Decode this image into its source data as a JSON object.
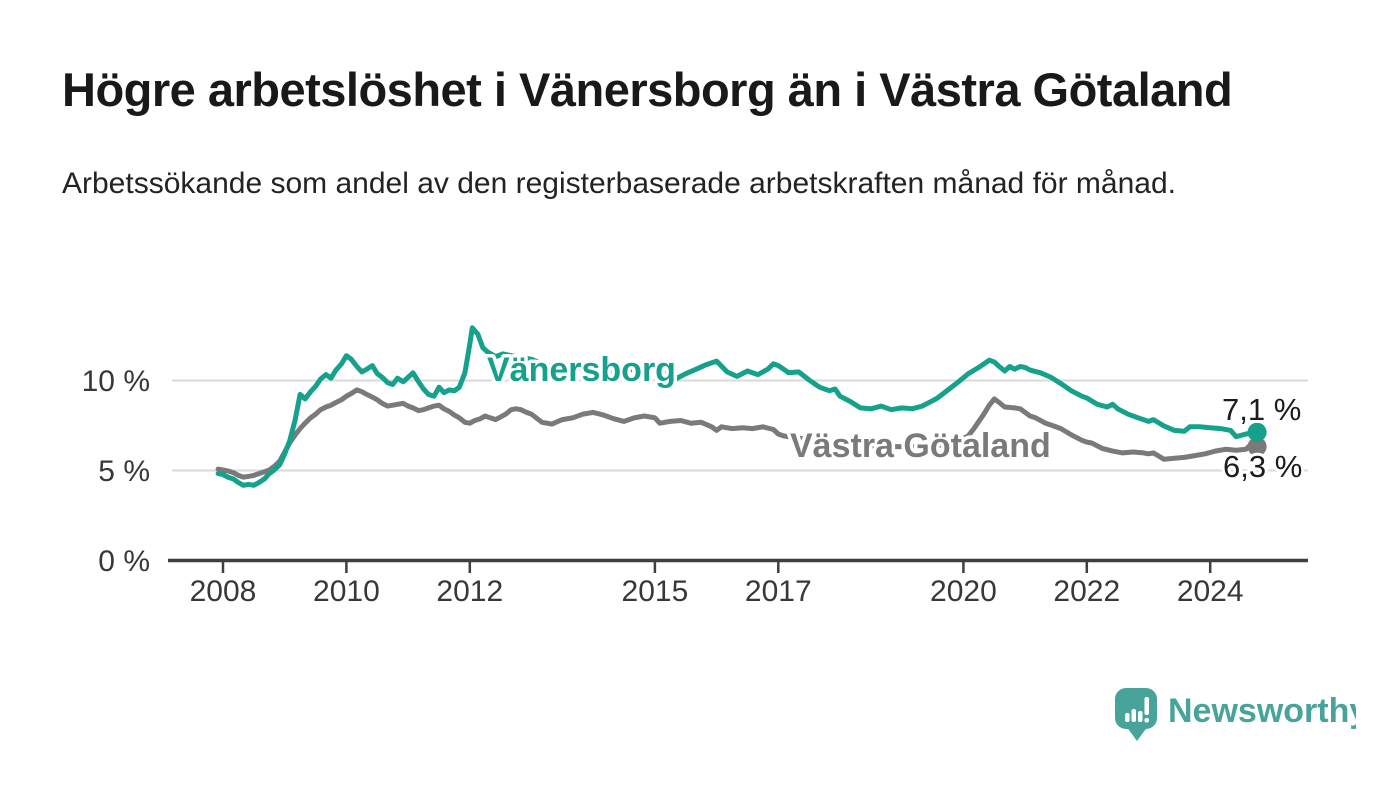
{
  "header": {
    "title": "Högre arbetslöshet i Vänersborg än i Västra Götaland",
    "subtitle": "Arbetssökande som andel av den registerbaserade arbetskraften månad för månad."
  },
  "chart_data": {
    "type": "line",
    "unit": "%",
    "grid": "horizontal",
    "legend_position": "inline-labels",
    "xlim": [
      2007.9,
      2025.6
    ],
    "ylim": [
      0,
      13.5
    ],
    "x_ticks": [
      {
        "year": 2008,
        "label": "2008"
      },
      {
        "year": 2010,
        "label": "2010"
      },
      {
        "year": 2012,
        "label": "2012"
      },
      {
        "year": 2015,
        "label": "2015"
      },
      {
        "year": 2017,
        "label": "2017"
      },
      {
        "year": 2020,
        "label": "2020"
      },
      {
        "year": 2022,
        "label": "2022"
      },
      {
        "year": 2024,
        "label": "2024"
      }
    ],
    "y_ticks": [
      {
        "value": 0,
        "label": "0 %"
      },
      {
        "value": 5,
        "label": "5 %"
      },
      {
        "value": 10,
        "label": "10 %"
      }
    ],
    "series": [
      {
        "name": "Vänersborg",
        "color": "#16a18d",
        "end_label": "7,1 %",
        "end_value": 7.1,
        "points": [
          [
            2007.92,
            4.8
          ],
          [
            2008.0,
            4.75
          ],
          [
            2008.08,
            4.6
          ],
          [
            2008.17,
            4.5
          ],
          [
            2008.25,
            4.3
          ],
          [
            2008.33,
            4.15
          ],
          [
            2008.42,
            4.2
          ],
          [
            2008.5,
            4.15
          ],
          [
            2008.58,
            4.3
          ],
          [
            2008.67,
            4.5
          ],
          [
            2008.75,
            4.8
          ],
          [
            2008.83,
            5.0
          ],
          [
            2008.92,
            5.3
          ],
          [
            2009.0,
            5.9
          ],
          [
            2009.08,
            6.6
          ],
          [
            2009.17,
            7.8
          ],
          [
            2009.25,
            9.2
          ],
          [
            2009.33,
            8.95
          ],
          [
            2009.42,
            9.35
          ],
          [
            2009.5,
            9.65
          ],
          [
            2009.58,
            10.05
          ],
          [
            2009.67,
            10.3
          ],
          [
            2009.75,
            10.1
          ],
          [
            2009.83,
            10.55
          ],
          [
            2009.92,
            10.9
          ],
          [
            2010.0,
            11.35
          ],
          [
            2010.08,
            11.15
          ],
          [
            2010.17,
            10.75
          ],
          [
            2010.25,
            10.45
          ],
          [
            2010.33,
            10.6
          ],
          [
            2010.42,
            10.8
          ],
          [
            2010.5,
            10.35
          ],
          [
            2010.58,
            10.15
          ],
          [
            2010.67,
            9.85
          ],
          [
            2010.75,
            9.75
          ],
          [
            2010.83,
            10.1
          ],
          [
            2010.92,
            9.9
          ],
          [
            2011.0,
            10.15
          ],
          [
            2011.08,
            10.4
          ],
          [
            2011.17,
            9.9
          ],
          [
            2011.25,
            9.5
          ],
          [
            2011.33,
            9.2
          ],
          [
            2011.42,
            9.1
          ],
          [
            2011.5,
            9.6
          ],
          [
            2011.58,
            9.3
          ],
          [
            2011.67,
            9.45
          ],
          [
            2011.75,
            9.4
          ],
          [
            2011.83,
            9.6
          ],
          [
            2011.92,
            10.4
          ],
          [
            2012.0,
            12.0
          ],
          [
            2012.04,
            12.9
          ],
          [
            2012.13,
            12.55
          ],
          [
            2012.21,
            11.8
          ],
          [
            2012.29,
            11.55
          ],
          [
            2012.42,
            11.3
          ],
          [
            2012.54,
            11.45
          ],
          [
            2012.67,
            11.35
          ],
          [
            2012.83,
            11.25
          ],
          [
            2013.0,
            11.15
          ],
          [
            2013.17,
            10.9
          ],
          [
            2013.33,
            10.75
          ],
          [
            2013.5,
            10.6
          ],
          [
            2013.67,
            10.55
          ],
          [
            2013.83,
            10.7
          ],
          [
            2014.0,
            10.65
          ],
          [
            2014.17,
            10.5
          ],
          [
            2014.33,
            10.45
          ],
          [
            2014.5,
            10.55
          ],
          [
            2014.67,
            10.6
          ],
          [
            2014.83,
            10.7
          ],
          [
            2015.0,
            10.8
          ],
          [
            2015.17,
            10.35
          ],
          [
            2015.33,
            10.05
          ],
          [
            2015.5,
            10.35
          ],
          [
            2015.67,
            10.6
          ],
          [
            2015.83,
            10.85
          ],
          [
            2016.0,
            11.05
          ],
          [
            2016.17,
            10.45
          ],
          [
            2016.33,
            10.2
          ],
          [
            2016.5,
            10.5
          ],
          [
            2016.67,
            10.3
          ],
          [
            2016.83,
            10.6
          ],
          [
            2016.92,
            10.9
          ],
          [
            2017.0,
            10.8
          ],
          [
            2017.17,
            10.4
          ],
          [
            2017.33,
            10.45
          ],
          [
            2017.5,
            10.0
          ],
          [
            2017.67,
            9.6
          ],
          [
            2017.83,
            9.4
          ],
          [
            2017.92,
            9.5
          ],
          [
            2018.0,
            9.1
          ],
          [
            2018.17,
            8.8
          ],
          [
            2018.33,
            8.45
          ],
          [
            2018.5,
            8.4
          ],
          [
            2018.67,
            8.55
          ],
          [
            2018.83,
            8.35
          ],
          [
            2019.0,
            8.45
          ],
          [
            2019.17,
            8.4
          ],
          [
            2019.33,
            8.55
          ],
          [
            2019.5,
            8.85
          ],
          [
            2019.58,
            9.0
          ],
          [
            2019.75,
            9.45
          ],
          [
            2019.92,
            9.9
          ],
          [
            2020.08,
            10.35
          ],
          [
            2020.25,
            10.7
          ],
          [
            2020.42,
            11.1
          ],
          [
            2020.5,
            11.0
          ],
          [
            2020.58,
            10.75
          ],
          [
            2020.67,
            10.5
          ],
          [
            2020.75,
            10.75
          ],
          [
            2020.83,
            10.6
          ],
          [
            2020.92,
            10.75
          ],
          [
            2021.0,
            10.7
          ],
          [
            2021.08,
            10.55
          ],
          [
            2021.25,
            10.4
          ],
          [
            2021.42,
            10.15
          ],
          [
            2021.58,
            9.8
          ],
          [
            2021.75,
            9.4
          ],
          [
            2021.92,
            9.1
          ],
          [
            2022.0,
            9.0
          ],
          [
            2022.17,
            8.65
          ],
          [
            2022.33,
            8.5
          ],
          [
            2022.42,
            8.65
          ],
          [
            2022.5,
            8.4
          ],
          [
            2022.67,
            8.1
          ],
          [
            2022.83,
            7.9
          ],
          [
            2023.0,
            7.7
          ],
          [
            2023.08,
            7.8
          ],
          [
            2023.25,
            7.45
          ],
          [
            2023.42,
            7.2
          ],
          [
            2023.58,
            7.15
          ],
          [
            2023.67,
            7.4
          ],
          [
            2023.83,
            7.4
          ],
          [
            2024.0,
            7.35
          ],
          [
            2024.17,
            7.3
          ],
          [
            2024.33,
            7.2
          ],
          [
            2024.42,
            6.85
          ],
          [
            2024.58,
            7.0
          ],
          [
            2024.67,
            7.05
          ],
          [
            2024.76,
            7.1
          ]
        ]
      },
      {
        "name": "Västra Götaland",
        "color": "#7a7a7a",
        "end_label": "6,3 %",
        "end_value": 6.3,
        "points": [
          [
            2007.92,
            5.05
          ],
          [
            2008.0,
            5.0
          ],
          [
            2008.08,
            4.95
          ],
          [
            2008.17,
            4.85
          ],
          [
            2008.25,
            4.7
          ],
          [
            2008.33,
            4.6
          ],
          [
            2008.42,
            4.65
          ],
          [
            2008.5,
            4.7
          ],
          [
            2008.58,
            4.8
          ],
          [
            2008.67,
            4.9
          ],
          [
            2008.75,
            5.0
          ],
          [
            2008.83,
            5.2
          ],
          [
            2008.92,
            5.5
          ],
          [
            2009.0,
            6.0
          ],
          [
            2009.08,
            6.5
          ],
          [
            2009.17,
            6.95
          ],
          [
            2009.25,
            7.3
          ],
          [
            2009.33,
            7.6
          ],
          [
            2009.42,
            7.9
          ],
          [
            2009.5,
            8.1
          ],
          [
            2009.58,
            8.35
          ],
          [
            2009.67,
            8.5
          ],
          [
            2009.75,
            8.6
          ],
          [
            2009.83,
            8.75
          ],
          [
            2009.92,
            8.9
          ],
          [
            2010.0,
            9.1
          ],
          [
            2010.08,
            9.25
          ],
          [
            2010.17,
            9.45
          ],
          [
            2010.25,
            9.35
          ],
          [
            2010.33,
            9.2
          ],
          [
            2010.42,
            9.05
          ],
          [
            2010.5,
            8.9
          ],
          [
            2010.58,
            8.7
          ],
          [
            2010.67,
            8.55
          ],
          [
            2010.75,
            8.6
          ],
          [
            2010.83,
            8.65
          ],
          [
            2010.92,
            8.7
          ],
          [
            2011.0,
            8.55
          ],
          [
            2011.08,
            8.45
          ],
          [
            2011.17,
            8.3
          ],
          [
            2011.25,
            8.35
          ],
          [
            2011.33,
            8.45
          ],
          [
            2011.42,
            8.55
          ],
          [
            2011.5,
            8.6
          ],
          [
            2011.58,
            8.4
          ],
          [
            2011.67,
            8.25
          ],
          [
            2011.75,
            8.05
          ],
          [
            2011.83,
            7.9
          ],
          [
            2011.92,
            7.65
          ],
          [
            2012.0,
            7.6
          ],
          [
            2012.08,
            7.75
          ],
          [
            2012.17,
            7.85
          ],
          [
            2012.25,
            8.0
          ],
          [
            2012.33,
            7.9
          ],
          [
            2012.42,
            7.8
          ],
          [
            2012.5,
            7.95
          ],
          [
            2012.58,
            8.1
          ],
          [
            2012.67,
            8.35
          ],
          [
            2012.75,
            8.4
          ],
          [
            2012.83,
            8.35
          ],
          [
            2012.92,
            8.2
          ],
          [
            2013.0,
            8.1
          ],
          [
            2013.17,
            7.65
          ],
          [
            2013.33,
            7.55
          ],
          [
            2013.5,
            7.8
          ],
          [
            2013.67,
            7.9
          ],
          [
            2013.83,
            8.1
          ],
          [
            2014.0,
            8.2
          ],
          [
            2014.17,
            8.05
          ],
          [
            2014.33,
            7.85
          ],
          [
            2014.5,
            7.7
          ],
          [
            2014.67,
            7.9
          ],
          [
            2014.83,
            8.0
          ],
          [
            2015.0,
            7.9
          ],
          [
            2015.08,
            7.6
          ],
          [
            2015.25,
            7.7
          ],
          [
            2015.42,
            7.75
          ],
          [
            2015.58,
            7.6
          ],
          [
            2015.75,
            7.65
          ],
          [
            2015.92,
            7.4
          ],
          [
            2016.0,
            7.2
          ],
          [
            2016.08,
            7.4
          ],
          [
            2016.25,
            7.3
          ],
          [
            2016.42,
            7.35
          ],
          [
            2016.58,
            7.3
          ],
          [
            2016.75,
            7.4
          ],
          [
            2016.92,
            7.25
          ],
          [
            2017.0,
            7.0
          ],
          [
            2017.08,
            6.9
          ],
          [
            2017.25,
            6.8
          ],
          [
            2017.5,
            6.7
          ],
          [
            2017.75,
            6.6
          ],
          [
            2018.0,
            6.5
          ],
          [
            2018.25,
            6.4
          ],
          [
            2018.5,
            6.35
          ],
          [
            2018.75,
            6.3
          ],
          [
            2019.0,
            6.3
          ],
          [
            2019.25,
            6.3
          ],
          [
            2019.5,
            6.35
          ],
          [
            2019.75,
            6.4
          ],
          [
            2019.92,
            6.6
          ],
          [
            2020.08,
            6.9
          ],
          [
            2020.17,
            7.3
          ],
          [
            2020.33,
            8.1
          ],
          [
            2020.42,
            8.6
          ],
          [
            2020.5,
            8.95
          ],
          [
            2020.58,
            8.75
          ],
          [
            2020.67,
            8.5
          ],
          [
            2020.83,
            8.45
          ],
          [
            2020.92,
            8.4
          ],
          [
            2021.0,
            8.2
          ],
          [
            2021.08,
            8.0
          ],
          [
            2021.17,
            7.9
          ],
          [
            2021.33,
            7.6
          ],
          [
            2021.42,
            7.5
          ],
          [
            2021.58,
            7.3
          ],
          [
            2021.75,
            6.95
          ],
          [
            2021.92,
            6.65
          ],
          [
            2022.0,
            6.55
          ],
          [
            2022.08,
            6.5
          ],
          [
            2022.25,
            6.2
          ],
          [
            2022.42,
            6.05
          ],
          [
            2022.58,
            5.95
          ],
          [
            2022.75,
            6.0
          ],
          [
            2022.92,
            5.95
          ],
          [
            2023.0,
            5.9
          ],
          [
            2023.08,
            5.95
          ],
          [
            2023.25,
            5.6
          ],
          [
            2023.42,
            5.65
          ],
          [
            2023.58,
            5.7
          ],
          [
            2023.75,
            5.8
          ],
          [
            2023.92,
            5.9
          ],
          [
            2024.08,
            6.05
          ],
          [
            2024.25,
            6.15
          ],
          [
            2024.42,
            6.1
          ],
          [
            2024.58,
            6.15
          ],
          [
            2024.68,
            6.5
          ],
          [
            2024.76,
            6.3
          ]
        ]
      }
    ]
  },
  "branding": {
    "logo_text": "Newsworthy",
    "color": "#48a49b"
  }
}
